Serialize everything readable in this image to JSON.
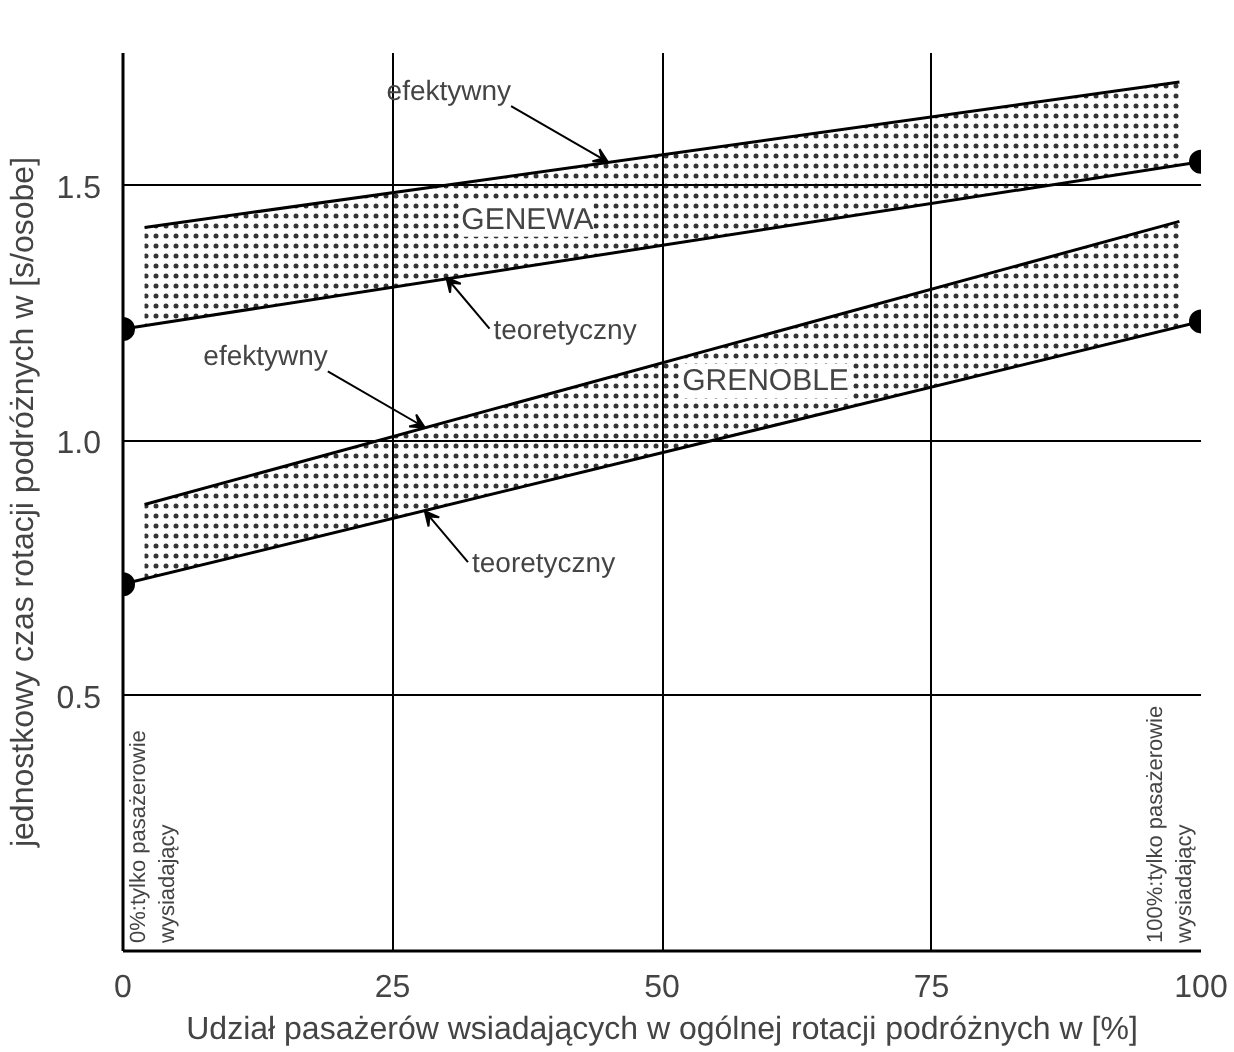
{
  "chart_data": {
    "type": "line",
    "xlabel": "Udział pasażerów wsiadających w ogólnej rotacji podróżnych w [%]",
    "ylabel": "jednostkowy czas rotacji podróżnych w [s/osobe]",
    "xlim": [
      0,
      100
    ],
    "ylim": [
      0,
      1.76
    ],
    "xticks": [
      0,
      25,
      50,
      75,
      100
    ],
    "yticks": [
      {
        "value": 0.5,
        "label": "0.5"
      },
      {
        "value": 1.0,
        "label": "1.0"
      },
      {
        "value": 1.5,
        "label": "1.5"
      }
    ],
    "grid": true,
    "line_style": "solid",
    "series": [
      {
        "name": "GENEWA",
        "color": "#000000",
        "marker": "none",
        "x": [
          2,
          98
        ],
        "values": [
          1.418,
          1.703
        ],
        "lower": [
          1.227,
          1.541
        ],
        "upper": [
          1.418,
          1.703
        ]
      },
      {
        "color": "#000000",
        "marker": "circle",
        "x": [
          0,
          100
        ],
        "values": [
          1.219,
          1.547
        ]
      },
      {
        "name": "GRENOBLE",
        "color": "#000000",
        "marker": "none",
        "x": [
          2,
          98
        ],
        "values": [
          0.875,
          1.43
        ],
        "lower": [
          0.729,
          1.224
        ],
        "upper": [
          0.875,
          1.43
        ]
      },
      {
        "color": "#000000",
        "marker": "circle",
        "x": [
          0,
          100
        ],
        "values": [
          0.719,
          1.234
        ]
      }
    ],
    "annotations": [
      {
        "text": "efektywny",
        "x": 45,
        "y": 1.546
      },
      {
        "text": "teoretyczny",
        "x": 30,
        "y": 1.32
      },
      {
        "text": "efektywny",
        "x": 28,
        "y": 1.026
      },
      {
        "text": "teoretyczny",
        "x": 28,
        "y": 0.862
      },
      "0%:tylko pasażerowie\nwysiadający",
      "100%:tylko pasażerowie\nwysiadający"
    ]
  }
}
